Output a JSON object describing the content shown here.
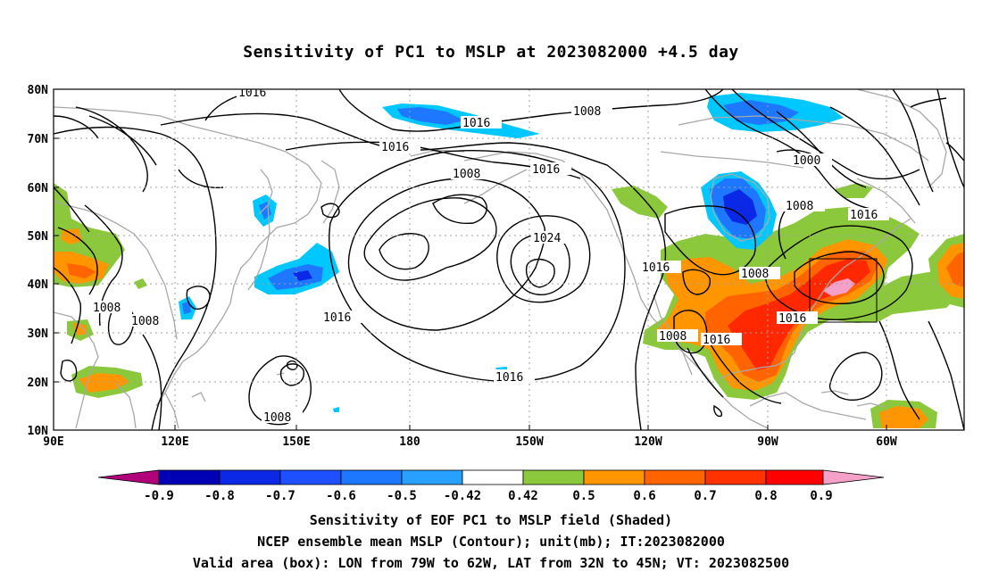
{
  "title": "Sensitivity of PC1 to MSLP at 2023082000 +4.5 day",
  "lat_labels": [
    "80N",
    "70N",
    "60N",
    "50N",
    "40N",
    "30N",
    "20N",
    "10N"
  ],
  "lon_labels": [
    "90E",
    "120E",
    "150E",
    "180",
    "150W",
    "120W",
    "90W",
    "60W"
  ],
  "contour_labels": [
    "1016",
    "1016",
    "1016",
    "1008",
    "1008",
    "1016",
    "1000",
    "1008",
    "1016",
    "1024",
    "1016",
    "1008",
    "1008",
    "1008",
    "1016",
    "1008",
    "1016",
    "1016",
    "1008",
    "1016"
  ],
  "colorbar": {
    "labels": [
      "-0.9",
      "-0.8",
      "-0.7",
      "-0.6",
      "-0.5",
      "-0.42",
      "0.42",
      "0.5",
      "0.6",
      "0.7",
      "0.8",
      "0.9"
    ],
    "colors": [
      "#b0007a",
      "#0000b4",
      "#0a28e6",
      "#1e50ff",
      "#1e78ff",
      "#28a0ff",
      "#00c8ff",
      "#ffffff",
      "#8cc83c",
      "#ff9600",
      "#ff6400",
      "#ff3200",
      "#ff0000",
      "#f5a0c8"
    ]
  },
  "captions": [
    "Sensitivity of EOF PC1 to MSLP field (Shaded)",
    "NCEP ensemble mean MSLP (Contour); unit(mb); IT:2023082000",
    "Valid area (box): LON from 79W to 62W, LAT from 32N to 45N; VT: 2023082500"
  ],
  "colors": {
    "coast": "#a8a8a8",
    "contour": "#000000",
    "grid": "#a0a0a0",
    "pos_light": "#8cc83c",
    "pos_orange": "#ff9600",
    "pos_dark_orange": "#ff6400",
    "pos_red": "#ff2800",
    "pos_pink": "#f5a0c8",
    "neg_light": "#00c8ff",
    "neg_mid": "#1e78ff",
    "neg_dark": "#0a28e6"
  }
}
